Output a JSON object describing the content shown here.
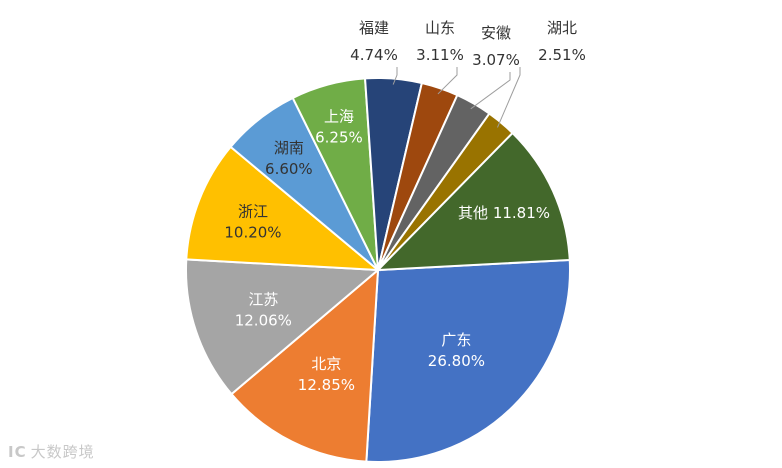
{
  "chart_data": {
    "type": "pie",
    "title": "",
    "slices": [
      {
        "name": "广东",
        "value": 26.8,
        "label": "26.80%",
        "color": "#4472c4",
        "label_color": "#ffffff",
        "placement": "inside"
      },
      {
        "name": "北京",
        "value": 12.85,
        "label": "12.85%",
        "color": "#ed7d31",
        "label_color": "#ffffff",
        "placement": "inside"
      },
      {
        "name": "江苏",
        "value": 12.06,
        "label": "12.06%",
        "color": "#a5a5a5",
        "label_color": "#ffffff",
        "placement": "inside"
      },
      {
        "name": "浙江",
        "value": 10.2,
        "label": "10.20%",
        "color": "#ffc000",
        "label_color": "#333333",
        "placement": "inside"
      },
      {
        "name": "湖南",
        "value": 6.6,
        "label": "6.60%",
        "color": "#5b9bd5",
        "label_color": "#333333",
        "placement": "inside"
      },
      {
        "name": "上海",
        "value": 6.25,
        "label": "6.25%",
        "color": "#70ad47",
        "label_color": "#ffffff",
        "placement": "inside"
      },
      {
        "name": "福建",
        "value": 4.74,
        "label": "4.74%",
        "color": "#264478",
        "label_color": "#333333",
        "placement": "outside"
      },
      {
        "name": "山东",
        "value": 3.11,
        "label": "3.11%",
        "color": "#9e480e",
        "label_color": "#333333",
        "placement": "outside"
      },
      {
        "name": "安徽",
        "value": 3.07,
        "label": "3.07%",
        "color": "#636363",
        "label_color": "#333333",
        "placement": "outside"
      },
      {
        "name": "湖北",
        "value": 2.51,
        "label": "2.51%",
        "color": "#997300",
        "label_color": "#333333",
        "placement": "outside"
      },
      {
        "name": "其他",
        "value": 11.81,
        "label": "11.81%",
        "color": "#43682b",
        "label_color": "#ffffff",
        "placement": "inside"
      }
    ]
  },
  "watermark": {
    "logo": "IC",
    "text": "大数跨境"
  }
}
